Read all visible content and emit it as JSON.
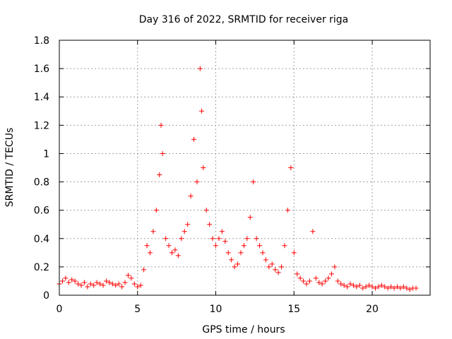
{
  "chart_data": {
    "type": "scatter",
    "title": "Day 316 of 2022, SRMTID for receiver riga",
    "xlabel": "GPS time / hours",
    "ylabel": "SRMTID / TECUs",
    "xlim": [
      0,
      23.7
    ],
    "ylim": [
      0,
      1.8
    ],
    "xticks": [
      0,
      5,
      10,
      15,
      20
    ],
    "xtick_labels": [
      "0",
      "5",
      "10",
      "15",
      "20"
    ],
    "yticks": [
      0,
      0.2,
      0.4,
      0.6,
      0.8,
      1.0,
      1.2,
      1.4,
      1.6,
      1.8
    ],
    "ytick_labels": [
      "0",
      "0.2",
      "0.4",
      "0.6",
      "0.8",
      "1",
      "1.2",
      "1.4",
      "1.6",
      "1.8"
    ],
    "grid": true,
    "marker": "+",
    "color": "#ff0000",
    "series": [
      {
        "name": "SRMTID",
        "x": [
          0.0,
          0.2,
          0.4,
          0.6,
          0.8,
          1.0,
          1.2,
          1.4,
          1.6,
          1.8,
          2.0,
          2.2,
          2.4,
          2.6,
          2.8,
          3.0,
          3.2,
          3.4,
          3.6,
          3.8,
          4.0,
          4.2,
          4.4,
          4.6,
          4.8,
          5.0,
          5.2,
          5.4,
          5.6,
          5.8,
          6.0,
          6.2,
          6.4,
          6.5,
          6.6,
          6.8,
          7.0,
          7.2,
          7.4,
          7.6,
          7.8,
          8.0,
          8.2,
          8.4,
          8.6,
          8.8,
          9.0,
          9.1,
          9.2,
          9.4,
          9.6,
          9.8,
          10.0,
          10.2,
          10.4,
          10.6,
          10.8,
          11.0,
          11.2,
          11.4,
          11.6,
          11.8,
          12.0,
          12.2,
          12.4,
          12.6,
          12.8,
          13.0,
          13.2,
          13.4,
          13.6,
          13.8,
          14.0,
          14.2,
          14.4,
          14.6,
          14.8,
          15.0,
          15.2,
          15.4,
          15.6,
          15.8,
          16.0,
          16.2,
          16.4,
          16.6,
          16.8,
          17.0,
          17.2,
          17.4,
          17.6,
          17.8,
          18.0,
          18.2,
          18.4,
          18.6,
          18.8,
          19.0,
          19.2,
          19.4,
          19.6,
          19.8,
          20.0,
          20.2,
          20.4,
          20.6,
          20.8,
          21.0,
          21.2,
          21.4,
          21.6,
          21.8,
          22.0,
          22.2,
          22.4,
          22.6,
          22.8
        ],
        "y": [
          0.08,
          0.1,
          0.12,
          0.09,
          0.11,
          0.1,
          0.08,
          0.07,
          0.09,
          0.06,
          0.08,
          0.07,
          0.09,
          0.08,
          0.07,
          0.1,
          0.09,
          0.08,
          0.07,
          0.08,
          0.06,
          0.09,
          0.14,
          0.12,
          0.08,
          0.06,
          0.07,
          0.18,
          0.35,
          0.3,
          0.45,
          0.6,
          0.85,
          1.2,
          1.0,
          0.4,
          0.35,
          0.3,
          0.32,
          0.28,
          0.4,
          0.45,
          0.5,
          0.7,
          1.1,
          0.8,
          1.6,
          1.3,
          0.9,
          0.6,
          0.5,
          0.4,
          0.35,
          0.4,
          0.45,
          0.38,
          0.3,
          0.25,
          0.2,
          0.22,
          0.3,
          0.35,
          0.4,
          0.55,
          0.8,
          0.4,
          0.35,
          0.3,
          0.25,
          0.2,
          0.22,
          0.18,
          0.16,
          0.2,
          0.35,
          0.6,
          0.9,
          0.3,
          0.15,
          0.12,
          0.1,
          0.08,
          0.1,
          0.45,
          0.12,
          0.09,
          0.08,
          0.1,
          0.12,
          0.15,
          0.2,
          0.1,
          0.08,
          0.07,
          0.06,
          0.08,
          0.07,
          0.06,
          0.07,
          0.05,
          0.06,
          0.07,
          0.06,
          0.05,
          0.06,
          0.07,
          0.06,
          0.05,
          0.06,
          0.05,
          0.06,
          0.05,
          0.06,
          0.05,
          0.04,
          0.05,
          0.05
        ]
      }
    ]
  }
}
